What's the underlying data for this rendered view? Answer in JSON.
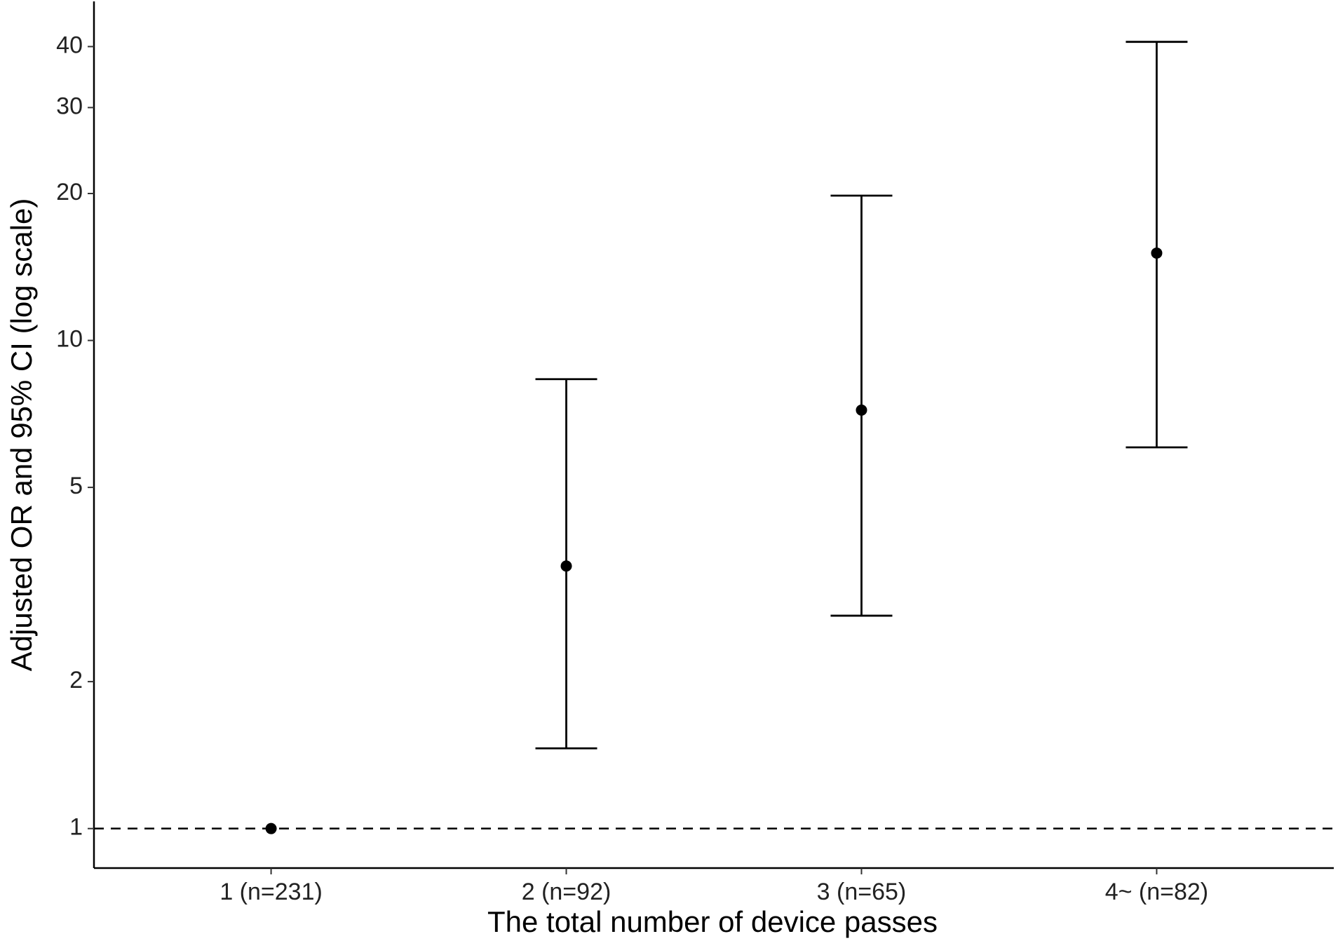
{
  "chart_data": {
    "type": "errorbar",
    "x_label": "The total number of device passes",
    "y_label": "Adjusted OR and 95% CI (log scale)",
    "categories": [
      "1 (n=231)",
      "2 (n=92)",
      "3 (n=65)",
      "4~ (n=82)"
    ],
    "values": [
      1,
      3.45,
      7.2,
      15.1
    ],
    "lower": [
      null,
      1.46,
      2.73,
      6.04
    ],
    "upper": [
      null,
      8.33,
      19.8,
      40.9
    ],
    "color": "#000000",
    "log_y": true,
    "ylim": [
      0.83,
      49.5
    ],
    "yticks": [
      1,
      2,
      5,
      10,
      20,
      30,
      40
    ],
    "reference_line": 1,
    "grid": false
  }
}
